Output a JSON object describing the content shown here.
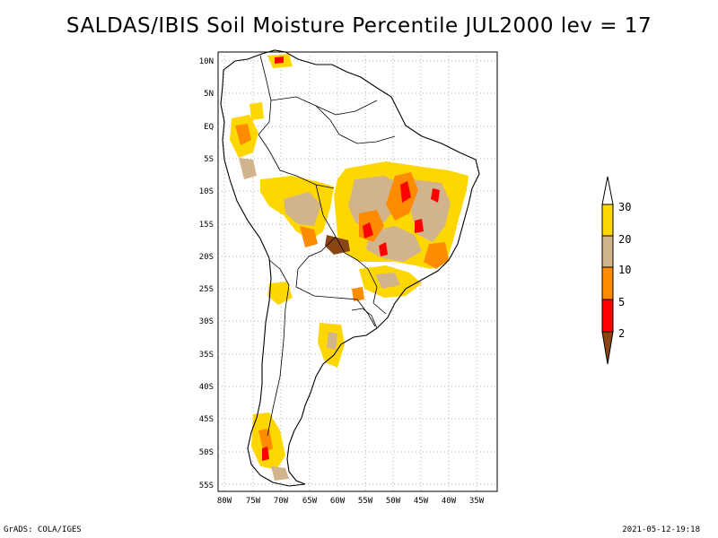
{
  "title": "SALDAS/IBIS Soil Moisture Percentile JUL2000 lev = 17",
  "footer": {
    "left": "GrADS: COLA/IGES",
    "right": "2021-05-12-19:18"
  },
  "map": {
    "lat_labels": [
      "10N",
      "5N",
      "EQ",
      "5S",
      "10S",
      "15S",
      "20S",
      "25S",
      "30S",
      "35S",
      "40S",
      "45S",
      "50S",
      "55S"
    ],
    "lon_labels": [
      "80W",
      "75W",
      "70W",
      "65W",
      "60W",
      "55W",
      "50W",
      "45W",
      "40W",
      "35W"
    ],
    "grid": true
  },
  "legend": {
    "labels": [
      "30",
      "20",
      "10",
      "5",
      "2"
    ],
    "colors": {
      "above_30": "#ffffff",
      "20_30": "#ffd700",
      "10_20": "#d2b48c",
      "5_10": "#ff8c00",
      "2_5": "#ff0000",
      "below_2": "#8b4513"
    }
  }
}
